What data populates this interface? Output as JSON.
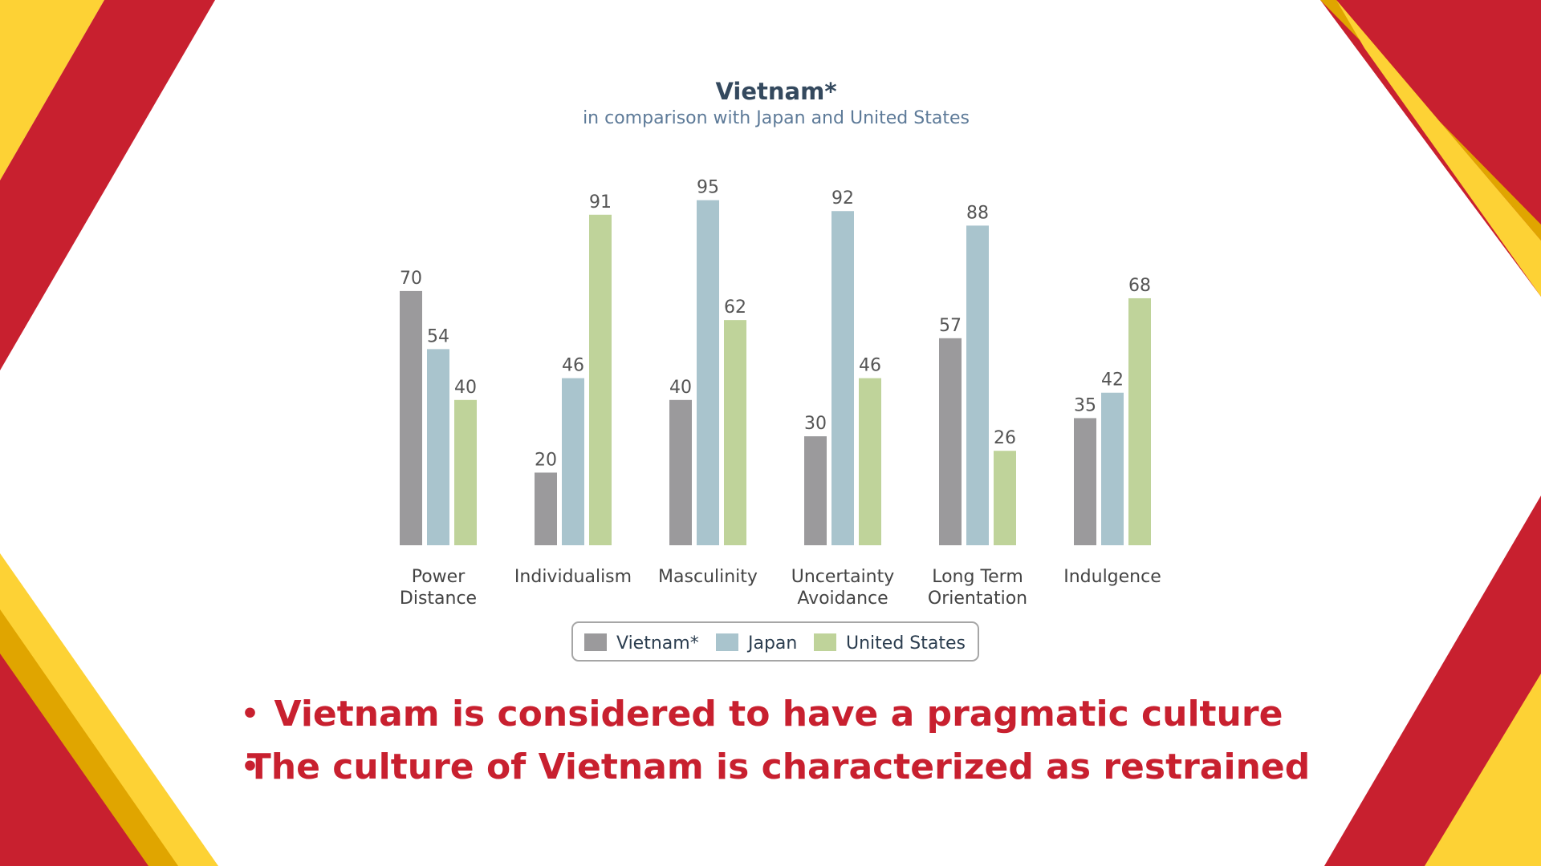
{
  "colors": {
    "red": "#c8202f",
    "yellow": "#fdd235",
    "gold": "#e0a500",
    "background": "#ffffff"
  },
  "chart_data": {
    "type": "bar",
    "title": "Vietnam*",
    "subtitle": "in comparison with Japan and United States",
    "categories": [
      [
        "Power",
        "Distance"
      ],
      [
        "Individualism"
      ],
      [
        "Masculinity"
      ],
      [
        "Uncertainty",
        "Avoidance"
      ],
      [
        "Long Term",
        "Orientation"
      ],
      [
        "Indulgence"
      ]
    ],
    "series": [
      {
        "name": "Vietnam*",
        "color": "#9b9a9c",
        "values": [
          70,
          20,
          40,
          30,
          57,
          35
        ]
      },
      {
        "name": "Japan",
        "color": "#a9c4cd",
        "values": [
          54,
          46,
          95,
          92,
          88,
          42
        ]
      },
      {
        "name": "United States",
        "color": "#bfd39a",
        "values": [
          40,
          91,
          62,
          46,
          26,
          68
        ]
      }
    ],
    "ylim": [
      0,
      100
    ],
    "grid": false,
    "data_labels": true,
    "legend_placement": "bottom-center"
  },
  "bullets": [
    "Vietnam is considered to have a pragmatic culture",
    "The culture of Vietnam is characterized as restrained"
  ],
  "bullet_glyph": "•"
}
